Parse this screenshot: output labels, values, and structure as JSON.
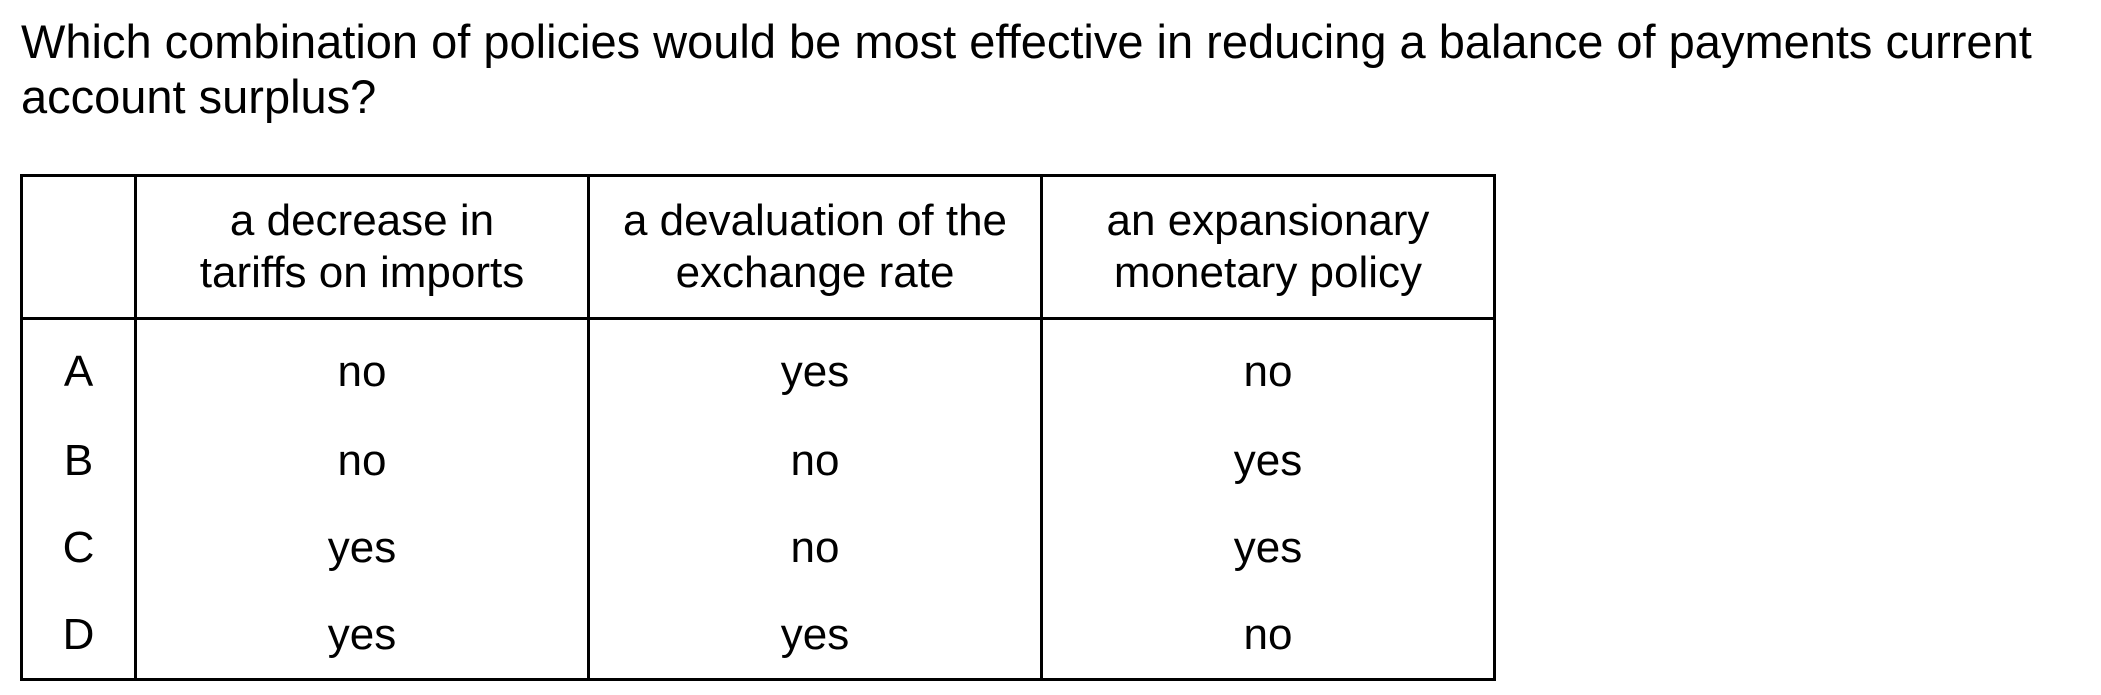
{
  "question": "Which combination of policies would be most effective in reducing a balance of payments current account surplus?",
  "table": {
    "header": {
      "blank": "",
      "col1": "a decrease in tariffs on imports",
      "col1_line1": "a decrease in",
      "col1_line2": "tariffs on imports",
      "col2_line1": "a devaluation of the",
      "col2_line2": "exchange rate",
      "col3_line1": "an expansionary",
      "col3_line2": "monetary policy"
    },
    "rows": [
      {
        "key": "A",
        "tariffs": "no",
        "devaluation": "yes",
        "monetary": "no"
      },
      {
        "key": "B",
        "tariffs": "no",
        "devaluation": "no",
        "monetary": "yes"
      },
      {
        "key": "C",
        "tariffs": "yes",
        "devaluation": "no",
        "monetary": "yes"
      },
      {
        "key": "D",
        "tariffs": "yes",
        "devaluation": "yes",
        "monetary": "no"
      }
    ]
  }
}
